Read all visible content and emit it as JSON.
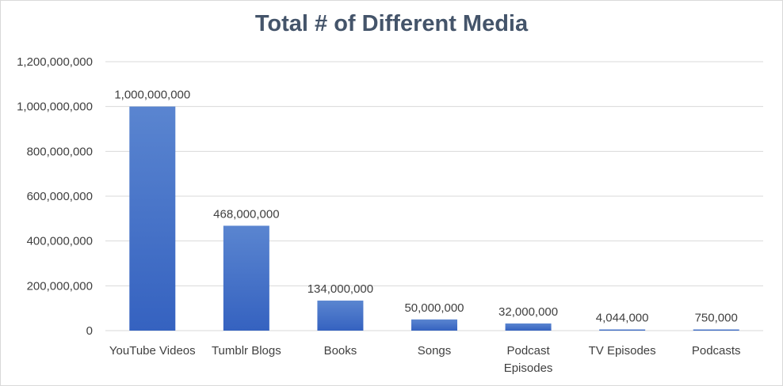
{
  "chart_data": {
    "type": "bar",
    "title": "Total # of Different Media",
    "xlabel": "",
    "ylabel": "",
    "ylim": [
      0,
      1200000000
    ],
    "yticks": [
      "0",
      "200,000,000",
      "400,000,000",
      "600,000,000",
      "800,000,000",
      "1,000,000,000",
      "1,200,000,000"
    ],
    "categories": [
      [
        "YouTube Videos"
      ],
      [
        "Tumblr Blogs"
      ],
      [
        "Books"
      ],
      [
        "Songs"
      ],
      [
        "Podcast",
        "Episodes"
      ],
      [
        "TV Episodes"
      ],
      [
        "Podcasts"
      ]
    ],
    "values": [
      1000000000,
      468000000,
      134000000,
      50000000,
      32000000,
      4044000,
      750000
    ],
    "data_labels": [
      "1,000,000,000",
      "468,000,000",
      "134,000,000",
      "50,000,000",
      "32,000,000",
      "4,044,000",
      "750,000"
    ],
    "grid": true,
    "legend": "none",
    "colors": {
      "bar_top": "#5a85d0",
      "bar_bottom": "#3562c0",
      "grid": "#d9d9d9",
      "title": "#44546a",
      "text": "#404040"
    }
  }
}
